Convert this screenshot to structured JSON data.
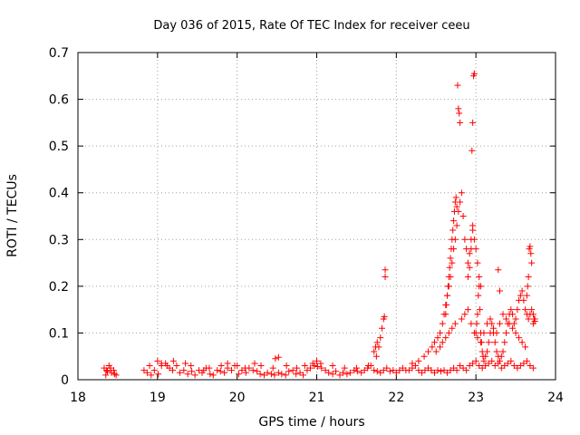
{
  "chart_data": {
    "type": "scatter",
    "title": "Day 036 of 2015, Rate Of TEC Index for receiver ceeu",
    "xlabel": "GPS time / hours",
    "ylabel": "ROTI / TECUs",
    "xlim": [
      18,
      24
    ],
    "ylim": [
      0,
      0.7
    ],
    "x_ticks": [
      18,
      19,
      20,
      21,
      22,
      23,
      24
    ],
    "y_ticks": [
      0,
      0.1,
      0.2,
      0.3,
      0.4,
      0.5,
      0.6,
      0.7
    ],
    "x_tick_labels": [
      "18",
      "19",
      "20",
      "21",
      "22",
      "23",
      "24"
    ],
    "y_tick_labels": [
      "0",
      "0.1",
      "0.2",
      "0.3",
      "0.4",
      "0.5",
      "0.6",
      "0.7"
    ],
    "grid": true,
    "marker": "+",
    "series": [
      {
        "name": "ROTI",
        "color": "#ff0000",
        "x": [
          18.33,
          18.36,
          18.39,
          18.42,
          18.45,
          18.48,
          18.37,
          18.41,
          18.46,
          18.35,
          18.83,
          18.87,
          18.92,
          18.96,
          19.01,
          19.05,
          19.1,
          19.15,
          19.19,
          19.24,
          19.28,
          19.33,
          19.38,
          19.43,
          19.47,
          19.52,
          19.56,
          19.61,
          19.66,
          19.7,
          19.75,
          19.79,
          19.84,
          19.88,
          19.93,
          19.97,
          20.02,
          20.06,
          20.11,
          20.15,
          20.2,
          20.25,
          20.29,
          20.34,
          20.38,
          20.43,
          20.47,
          20.52,
          20.56,
          20.61,
          20.65,
          20.7,
          20.74,
          20.79,
          20.83,
          20.88,
          20.92,
          20.97,
          21.01,
          21.06,
          21.11,
          21.15,
          21.2,
          21.24,
          21.29,
          21.33,
          21.38,
          21.42,
          21.47,
          21.51,
          21.56,
          21.6,
          21.64,
          21.68,
          21.72,
          21.76,
          21.8,
          21.84,
          21.88,
          21.92,
          21.96,
          22.0,
          22.04,
          22.08,
          22.12,
          22.16,
          22.2,
          22.24,
          22.28,
          22.32,
          22.36,
          22.4,
          22.44,
          22.48,
          22.52,
          22.56,
          22.6,
          22.64,
          22.68,
          22.72,
          22.76,
          22.8,
          22.84,
          22.88,
          22.92,
          22.96,
          23.0,
          23.04,
          23.08,
          23.12,
          23.16,
          23.2,
          23.24,
          23.28,
          23.32,
          23.36,
          23.4,
          23.44,
          23.48,
          23.52,
          23.56,
          23.6,
          23.64,
          23.68,
          23.72,
          18.9,
          19.0,
          19.05,
          19.12,
          19.2,
          19.35,
          19.42,
          19.58,
          19.65,
          19.8,
          19.88,
          20.0,
          20.1,
          20.22,
          20.3,
          20.45,
          20.48,
          20.52,
          20.62,
          20.75,
          20.85,
          20.95,
          21.0,
          21.05,
          21.2,
          21.35,
          21.5,
          21.65,
          21.75,
          21.78,
          21.8,
          21.82,
          21.84,
          21.72,
          21.74,
          21.76,
          21.85,
          21.86,
          21.86,
          22.2,
          22.28,
          22.35,
          22.4,
          22.45,
          22.48,
          22.52,
          22.55,
          22.58,
          22.6,
          22.62,
          22.64,
          22.66,
          22.68,
          22.7,
          22.72,
          22.74,
          22.76,
          22.78,
          22.8,
          22.82,
          22.84,
          22.86,
          22.88,
          22.9,
          22.92,
          22.94,
          22.96,
          22.98,
          23.0,
          23.02,
          23.04,
          23.06,
          22.95,
          22.96,
          22.97,
          22.98,
          22.96,
          22.94,
          22.92,
          22.9,
          22.77,
          22.78,
          22.79,
          22.8,
          22.76,
          22.75,
          22.74,
          22.73,
          22.72,
          22.71,
          22.7,
          22.69,
          22.68,
          22.67,
          22.66,
          22.65,
          22.64,
          22.63,
          22.62,
          23.0,
          23.01,
          23.02,
          23.03,
          23.04,
          23.05,
          23.06,
          23.07,
          23.08,
          23.09,
          23.1,
          23.12,
          23.14,
          23.16,
          23.18,
          23.2,
          23.22,
          23.24,
          23.26,
          23.28,
          23.3,
          23.32,
          23.34,
          23.36,
          23.38,
          23.4,
          23.42,
          23.44,
          23.46,
          23.48,
          23.5,
          23.52,
          23.54,
          23.56,
          23.58,
          23.6,
          23.62,
          23.64,
          23.66,
          23.68,
          23.7,
          23.72,
          23.74,
          23.67,
          23.68,
          23.69,
          23.7,
          23.66,
          23.65,
          23.64,
          23.72,
          23.74,
          23.73,
          22.5,
          22.55,
          22.58,
          22.62,
          22.66,
          22.7,
          22.74,
          22.82,
          22.86,
          22.9,
          22.94,
          22.98,
          23.02,
          23.06,
          23.1,
          23.14,
          23.18,
          23.22,
          23.26,
          23.3,
          23.34,
          23.38,
          23.42,
          23.46,
          23.5,
          23.54,
          23.58,
          23.62,
          23.28,
          23.3
        ],
        "y": [
          0.025,
          0.02,
          0.03,
          0.015,
          0.02,
          0.01,
          0.018,
          0.025,
          0.012,
          0.01,
          0.02,
          0.015,
          0.01,
          0.02,
          0.012,
          0.03,
          0.035,
          0.025,
          0.02,
          0.03,
          0.015,
          0.02,
          0.012,
          0.018,
          0.01,
          0.02,
          0.015,
          0.025,
          0.012,
          0.01,
          0.02,
          0.018,
          0.015,
          0.025,
          0.02,
          0.03,
          0.012,
          0.02,
          0.015,
          0.025,
          0.02,
          0.018,
          0.012,
          0.01,
          0.015,
          0.012,
          0.01,
          0.015,
          0.012,
          0.01,
          0.018,
          0.02,
          0.012,
          0.015,
          0.01,
          0.02,
          0.025,
          0.03,
          0.028,
          0.025,
          0.02,
          0.015,
          0.012,
          0.018,
          0.01,
          0.015,
          0.012,
          0.015,
          0.02,
          0.018,
          0.015,
          0.02,
          0.025,
          0.03,
          0.02,
          0.018,
          0.015,
          0.02,
          0.025,
          0.018,
          0.02,
          0.015,
          0.02,
          0.025,
          0.02,
          0.02,
          0.025,
          0.03,
          0.02,
          0.015,
          0.02,
          0.025,
          0.02,
          0.015,
          0.02,
          0.018,
          0.02,
          0.015,
          0.02,
          0.025,
          0.02,
          0.03,
          0.025,
          0.02,
          0.03,
          0.035,
          0.04,
          0.03,
          0.025,
          0.03,
          0.035,
          0.04,
          0.03,
          0.035,
          0.025,
          0.03,
          0.035,
          0.04,
          0.03,
          0.025,
          0.03,
          0.035,
          0.04,
          0.03,
          0.025,
          0.03,
          0.04,
          0.035,
          0.03,
          0.04,
          0.035,
          0.03,
          0.02,
          0.025,
          0.03,
          0.035,
          0.03,
          0.025,
          0.035,
          0.03,
          0.025,
          0.045,
          0.048,
          0.03,
          0.025,
          0.03,
          0.035,
          0.04,
          0.035,
          0.03,
          0.025,
          0.025,
          0.03,
          0.05,
          0.07,
          0.09,
          0.11,
          0.13,
          0.06,
          0.07,
          0.08,
          0.135,
          0.22,
          0.235,
          0.035,
          0.04,
          0.05,
          0.06,
          0.07,
          0.08,
          0.09,
          0.1,
          0.12,
          0.14,
          0.16,
          0.18,
          0.2,
          0.22,
          0.25,
          0.28,
          0.3,
          0.33,
          0.36,
          0.38,
          0.4,
          0.35,
          0.3,
          0.28,
          0.25,
          0.27,
          0.3,
          0.33,
          0.3,
          0.28,
          0.25,
          0.22,
          0.2,
          0.49,
          0.55,
          0.65,
          0.655,
          0.32,
          0.28,
          0.24,
          0.22,
          0.63,
          0.58,
          0.57,
          0.55,
          0.37,
          0.39,
          0.38,
          0.36,
          0.34,
          0.32,
          0.3,
          0.28,
          0.26,
          0.24,
          0.22,
          0.2,
          0.18,
          0.16,
          0.14,
          0.1,
          0.12,
          0.14,
          0.18,
          0.2,
          0.15,
          0.1,
          0.08,
          0.06,
          0.05,
          0.04,
          0.05,
          0.06,
          0.08,
          0.1,
          0.12,
          0.1,
          0.08,
          0.06,
          0.05,
          0.04,
          0.05,
          0.06,
          0.08,
          0.1,
          0.12,
          0.14,
          0.15,
          0.14,
          0.12,
          0.13,
          0.15,
          0.17,
          0.18,
          0.19,
          0.17,
          0.15,
          0.14,
          0.13,
          0.14,
          0.15,
          0.14,
          0.13,
          0.28,
          0.285,
          0.27,
          0.25,
          0.22,
          0.2,
          0.18,
          0.12,
          0.125,
          0.13,
          0.06,
          0.07,
          0.08,
          0.09,
          0.1,
          0.11,
          0.12,
          0.13,
          0.14,
          0.15,
          0.12,
          0.1,
          0.09,
          0.08,
          0.1,
          0.12,
          0.13,
          0.11,
          0.1,
          0.12,
          0.14,
          0.13,
          0.12,
          0.11,
          0.1,
          0.09,
          0.08,
          0.07,
          0.235,
          0.19
        ]
      }
    ]
  }
}
